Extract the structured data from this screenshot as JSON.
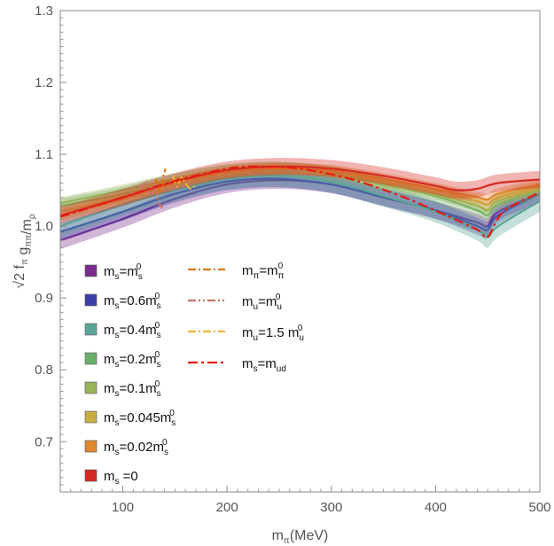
{
  "chart_data": {
    "type": "line",
    "title": "",
    "xlabel": "m_π(MeV)",
    "ylabel": "√2 f_π g_ππ/m_ρ",
    "xlim": [
      40,
      500
    ],
    "ylim": [
      0.63,
      1.3
    ],
    "xticks": [
      100,
      200,
      300,
      400,
      500
    ],
    "xtick_labels": [
      "100",
      "200",
      "300",
      "400",
      "500"
    ],
    "yticks": [
      0.7,
      0.8,
      0.9,
      1.0,
      1.1,
      1.2,
      1.3
    ],
    "ytick_labels": [
      "0.7",
      "0.8",
      "0.9",
      "1.0",
      "1.1",
      "1.2",
      "1.3"
    ],
    "grid": false,
    "legend_placement": "bottom-left",
    "band_series": [
      {
        "name": "m_s=m_s^0",
        "label_main": "m",
        "label_sub": "s",
        "label_rest": "=m",
        "label_sub2": "s",
        "label_sup": "0",
        "color": "#7b2d8e",
        "x": [
          40,
          100,
          150,
          200,
          250,
          300,
          350,
          400,
          440,
          450,
          460,
          500
        ],
        "y": [
          0.98,
          1.01,
          1.038,
          1.058,
          1.064,
          1.058,
          1.04,
          1.022,
          1.005,
          1.0,
          1.02,
          1.045
        ],
        "err": 0.012
      },
      {
        "name": "m_s=0.6m_s^0",
        "label_main": "m",
        "label_sub": "s",
        "label_rest": "=0.6m",
        "label_sub2": "s",
        "label_sup": "0",
        "color": "#3e3fa8",
        "x": [
          40,
          100,
          150,
          200,
          250,
          300,
          350,
          400,
          440,
          450,
          460,
          500
        ],
        "y": [
          0.992,
          1.02,
          1.045,
          1.062,
          1.066,
          1.058,
          1.04,
          1.022,
          1.0,
          0.995,
          1.015,
          1.045
        ],
        "err": 0.012
      },
      {
        "name": "m_s=0.4m_s^0",
        "label_main": "m",
        "label_sub": "s",
        "label_rest": "=0.4m",
        "label_sub2": "s",
        "label_sup": "0",
        "color": "#5aa595",
        "x": [
          40,
          100,
          150,
          200,
          250,
          300,
          350,
          400,
          440,
          450,
          460,
          500
        ],
        "y": [
          1.0,
          1.03,
          1.05,
          1.066,
          1.07,
          1.062,
          1.042,
          1.02,
          0.995,
          0.985,
          1.0,
          1.035
        ],
        "err": 0.015
      },
      {
        "name": "m_s=0.2m_s^0",
        "label_main": "m",
        "label_sub": "s",
        "label_rest": "=0.2m",
        "label_sub2": "s",
        "label_sup": "0",
        "color": "#6db06c",
        "x": [
          40,
          100,
          150,
          200,
          250,
          300,
          350,
          400,
          440,
          450,
          460,
          500
        ],
        "y": [
          1.028,
          1.045,
          1.063,
          1.076,
          1.08,
          1.073,
          1.058,
          1.042,
          1.022,
          1.015,
          1.03,
          1.05
        ],
        "err": 0.01
      },
      {
        "name": "m_s=0.1m_s^0",
        "label_main": "m",
        "label_sub": "s",
        "label_rest": "=0.1m",
        "label_sub2": "s",
        "label_sup": "0",
        "color": "#99b356",
        "x": [
          40,
          100,
          150,
          200,
          250,
          300,
          350,
          400,
          440,
          450,
          460,
          500
        ],
        "y": [
          1.032,
          1.05,
          1.066,
          1.078,
          1.081,
          1.075,
          1.06,
          1.045,
          1.028,
          1.022,
          1.035,
          1.052
        ],
        "err": 0.008
      },
      {
        "name": "m_s=0.045m_s^0",
        "label_main": "m",
        "label_sub": "s",
        "label_rest": "=0.045m",
        "label_sub2": "s",
        "label_sup": "0",
        "color": "#c8ad42",
        "x": [
          40,
          100,
          150,
          200,
          250,
          300,
          350,
          400,
          440,
          450,
          460,
          500
        ],
        "y": [
          1.02,
          1.04,
          1.06,
          1.075,
          1.08,
          1.076,
          1.063,
          1.05,
          1.035,
          1.03,
          1.04,
          1.055
        ],
        "err": 0.008
      },
      {
        "name": "m_s=0.02m_s^0",
        "label_main": "m",
        "label_sub": "s",
        "label_rest": "=0.02m",
        "label_sub2": "s",
        "label_sup": "0",
        "color": "#e0882e",
        "x": [
          40,
          100,
          150,
          200,
          250,
          300,
          350,
          400,
          440,
          450,
          460,
          500
        ],
        "y": [
          1.015,
          1.038,
          1.06,
          1.075,
          1.08,
          1.077,
          1.066,
          1.052,
          1.04,
          1.037,
          1.045,
          1.058
        ],
        "err": 0.008
      },
      {
        "name": "m_s=0",
        "label_main": "m",
        "label_sub": "s",
        "label_rest": " =0",
        "label_sub2": "",
        "label_sup": "",
        "color": "#d32a22",
        "x": [
          40,
          100,
          150,
          200,
          250,
          300,
          350,
          400,
          420,
          440,
          460,
          500
        ],
        "y": [
          1.015,
          1.04,
          1.062,
          1.078,
          1.083,
          1.08,
          1.07,
          1.056,
          1.05,
          1.052,
          1.06,
          1.065
        ],
        "err": 0.012
      }
    ],
    "dashed_series": [
      {
        "name": "m_π=m_π^0",
        "label_main": "m",
        "label_sub": "π",
        "label_rest": "=m",
        "label_sub2": "π",
        "label_sup": "0",
        "color": "#d9770f",
        "dash": "9,3,2,3",
        "x": [
          130,
          133,
          136,
          139,
          141
        ],
        "y": [
          1.055,
          1.065,
          1.045,
          1.07,
          1.08
        ]
      },
      {
        "name": "m_u=m_u^0",
        "label_main": "m",
        "label_sub": "u",
        "label_rest": "=m",
        "label_sub2": "u",
        "label_sup": "0",
        "color": "#c97366",
        "dash": "9,3,2,3,2,3",
        "x": [
          118,
          122,
          126,
          130,
          134,
          138
        ],
        "y": [
          1.05,
          1.063,
          1.045,
          1.062,
          1.035,
          1.025
        ]
      },
      {
        "name": "m_u=1.5 m_u^0",
        "label_main": "m",
        "label_sub": "u",
        "label_rest": "=1.5 m",
        "label_sub2": "u",
        "label_sup": "0",
        "color": "#f0b43a",
        "dash": "9,3,2,3",
        "x": [
          148,
          152,
          156,
          160,
          165,
          170
        ],
        "y": [
          1.07,
          1.055,
          1.068,
          1.06,
          1.052,
          1.058
        ]
      },
      {
        "name": "m_s=m_ud",
        "label_main": "m",
        "label_sub": "s",
        "label_rest": "=m",
        "label_sub2": "ud",
        "label_sup": "",
        "color": "#e51b12",
        "dash": "11,4,3,4",
        "x": [
          40,
          100,
          150,
          200,
          230,
          270,
          320,
          370,
          410,
          440,
          450,
          465,
          500
        ],
        "y": [
          1.013,
          1.04,
          1.063,
          1.08,
          1.083,
          1.08,
          1.065,
          1.04,
          1.015,
          0.995,
          0.985,
          1.02,
          1.047
        ]
      }
    ]
  }
}
